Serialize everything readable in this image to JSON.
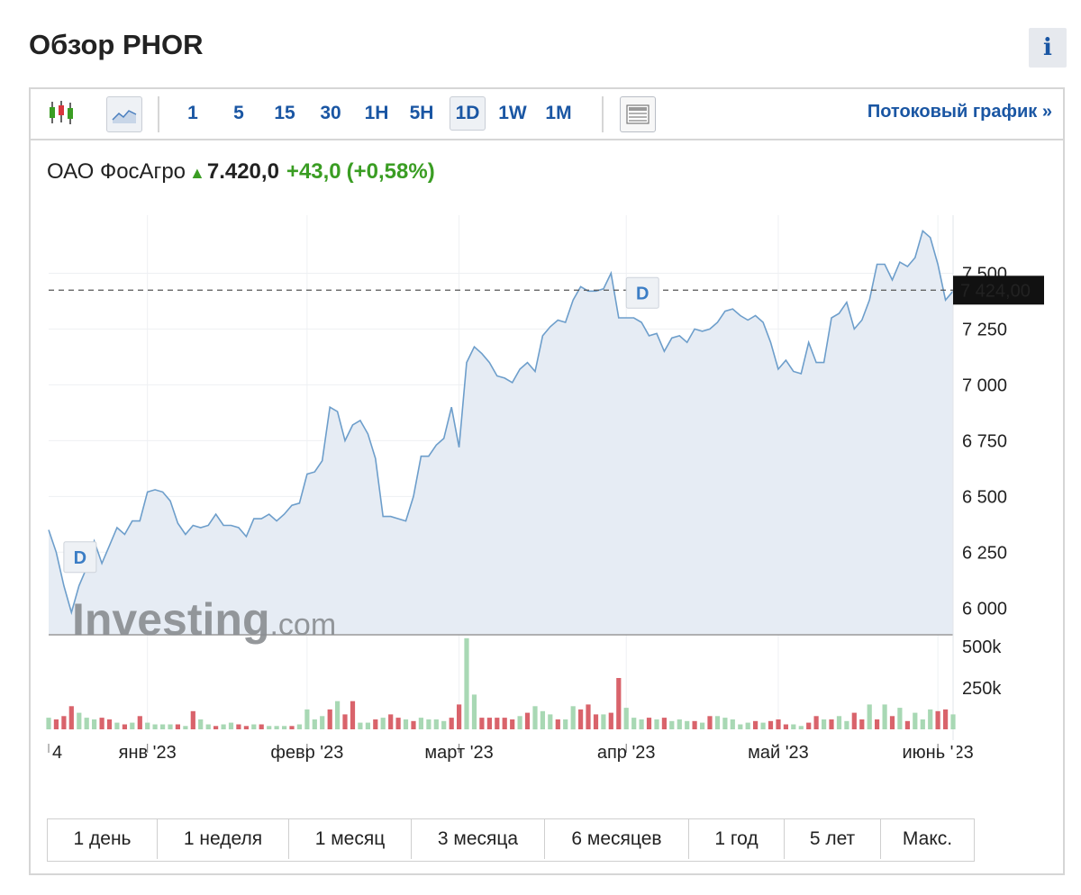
{
  "page": {
    "title": "Обзор PHOR",
    "info_label": "i"
  },
  "toolbar": {
    "intervals": [
      "1",
      "5",
      "15",
      "30",
      "1H",
      "5H",
      "1D",
      "1W",
      "1M"
    ],
    "active_interval": "1D",
    "stream_link": "Потоковый график »"
  },
  "quote": {
    "name": "ОАО ФосАгро",
    "price": "7.420,0",
    "change": "+43,0",
    "change_pct": "(+0,58%)",
    "up_color": "#3a9d23"
  },
  "chart_data": {
    "type": "line",
    "series": [
      {
        "values": [
          6350,
          6250,
          6100,
          5980,
          6100,
          6180,
          6300,
          6200,
          6280,
          6360,
          6330,
          6390,
          6390,
          6520,
          6530,
          6520,
          6480,
          6380,
          6330,
          6370,
          6360,
          6370,
          6420,
          6370,
          6370,
          6360,
          6320,
          6400,
          6400,
          6420,
          6390,
          6420,
          6460,
          6470,
          6600,
          6610,
          6660,
          6900,
          6880,
          6750,
          6820,
          6840,
          6780,
          6670,
          6410,
          6410,
          6400,
          6390,
          6500,
          6680,
          6680,
          6730,
          6760,
          6900,
          6720,
          7100,
          7170,
          7140,
          7100,
          7040,
          7030,
          7010,
          7070,
          7100,
          7060,
          7220,
          7260,
          7290,
          7280,
          7380,
          7440,
          7420,
          7420,
          7430,
          7500,
          7300,
          7300,
          7300,
          7280,
          7220,
          7230,
          7150,
          7210,
          7220,
          7190,
          7250,
          7240,
          7250,
          7280,
          7330,
          7340,
          7310,
          7290,
          7310,
          7280,
          7190,
          7070,
          7110,
          7060,
          7050,
          7190,
          7100,
          7100,
          7300,
          7320,
          7370,
          7250,
          7290,
          7380,
          7540,
          7540,
          7470,
          7550,
          7530,
          7570,
          7690,
          7660,
          7540,
          7380,
          7420
        ]
      }
    ],
    "y_ticks": [
      "6 000",
      "6 250",
      "6 500",
      "6 750",
      "7 000",
      "7 250",
      "7 500"
    ],
    "y_tick_values": [
      6000,
      6250,
      6500,
      6750,
      7000,
      7250,
      7500
    ],
    "ylim": [
      5880,
      7760
    ],
    "last_price_label": "7 424,00",
    "last_price_value": 7424,
    "x_ticks": [
      {
        "label": "4",
        "index": 0
      },
      {
        "label": "янв '23",
        "index": 13
      },
      {
        "label": "февр '23",
        "index": 34
      },
      {
        "label": "март '23",
        "index": 54
      },
      {
        "label": "апр '23",
        "index": 76
      },
      {
        "label": "май '23",
        "index": 96
      },
      {
        "label": "июнь '23",
        "index": 117
      }
    ],
    "dividend_markers": [
      {
        "label": "D",
        "index": 2,
        "value": 6240
      },
      {
        "label": "D",
        "index": 76,
        "value": 7424
      }
    ],
    "volume": {
      "y_ticks": [
        "250k",
        "500k"
      ],
      "y_tick_values": [
        250000,
        500000
      ],
      "max": 560000,
      "values": [
        70000,
        60000,
        80000,
        140000,
        100000,
        70000,
        60000,
        70000,
        60000,
        40000,
        30000,
        40000,
        80000,
        40000,
        30000,
        30000,
        30000,
        30000,
        20000,
        110000,
        60000,
        30000,
        20000,
        30000,
        40000,
        30000,
        20000,
        30000,
        30000,
        20000,
        20000,
        20000,
        20000,
        30000,
        120000,
        60000,
        80000,
        120000,
        170000,
        90000,
        170000,
        40000,
        40000,
        60000,
        70000,
        90000,
        70000,
        60000,
        50000,
        70000,
        60000,
        60000,
        50000,
        70000,
        150000,
        550000,
        210000,
        70000,
        70000,
        70000,
        70000,
        60000,
        80000,
        100000,
        140000,
        110000,
        90000,
        60000,
        60000,
        140000,
        120000,
        150000,
        90000,
        90000,
        100000,
        310000,
        130000,
        70000,
        60000,
        70000,
        60000,
        70000,
        50000,
        60000,
        50000,
        50000,
        40000,
        80000,
        80000,
        70000,
        60000,
        30000,
        40000,
        50000,
        40000,
        50000,
        60000,
        30000,
        30000,
        20000,
        40000,
        80000,
        60000,
        60000,
        80000,
        50000,
        100000,
        60000,
        150000,
        60000,
        150000,
        80000,
        130000,
        50000,
        100000,
        60000,
        120000,
        110000,
        120000,
        90000
      ],
      "colors": [
        "g",
        "r",
        "r",
        "r",
        "g",
        "g",
        "g",
        "r",
        "r",
        "g",
        "r",
        "g",
        "r",
        "g",
        "g",
        "g",
        "g",
        "r",
        "g",
        "r",
        "g",
        "g",
        "r",
        "g",
        "g",
        "r",
        "r",
        "g",
        "r",
        "g",
        "g",
        "g",
        "r",
        "g",
        "g",
        "g",
        "g",
        "r",
        "g",
        "r",
        "r",
        "g",
        "g",
        "r",
        "g",
        "r",
        "r",
        "g",
        "r",
        "g",
        "g",
        "g",
        "g",
        "r",
        "r",
        "g",
        "g",
        "r",
        "r",
        "r",
        "r",
        "r",
        "g",
        "r",
        "g",
        "g",
        "g",
        "r",
        "g",
        "g",
        "r",
        "r",
        "r",
        "g",
        "r",
        "r",
        "g",
        "g",
        "g",
        "r",
        "g",
        "r",
        "g",
        "g",
        "g",
        "r",
        "g",
        "r",
        "g",
        "g",
        "g",
        "g",
        "g",
        "r",
        "g",
        "r",
        "r",
        "r",
        "g",
        "g",
        "r",
        "r",
        "g",
        "r",
        "g",
        "g",
        "r",
        "r",
        "g",
        "r",
        "g",
        "r",
        "g",
        "r",
        "g",
        "g",
        "g",
        "r",
        "r",
        "g"
      ]
    },
    "colors": {
      "line": "#6d9ecb",
      "fill": "#e6ecf4",
      "up_volume": "#a8d8b4",
      "down_volume": "#d9636b",
      "last_price_bg": "#111111",
      "marker_text": "#3b7dc5"
    }
  },
  "watermark": {
    "brand": "Investing",
    "suffix": ".com"
  },
  "ranges": [
    "1 день",
    "1 неделя",
    "1 месяц",
    "3 месяца",
    "6 месяцев",
    "1 год",
    "5 лет",
    "Макс."
  ]
}
